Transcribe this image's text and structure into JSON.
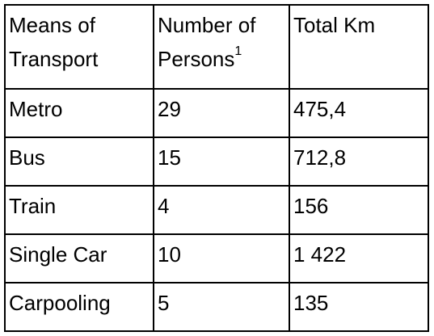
{
  "table": {
    "headers": [
      {
        "line1": "Means of",
        "line2": "Transport"
      },
      {
        "line1": "Number of",
        "line2": "Persons",
        "sup": "1"
      },
      {
        "line1": "Total Km",
        "line2": ""
      }
    ],
    "rows": [
      [
        "Metro",
        "29",
        "475,4"
      ],
      [
        "Bus",
        "15",
        "712,8"
      ],
      [
        "Train",
        "4",
        "156"
      ],
      [
        "Single Car",
        "10",
        "1 422"
      ],
      [
        "Carpooling",
        "5",
        "135"
      ]
    ]
  }
}
